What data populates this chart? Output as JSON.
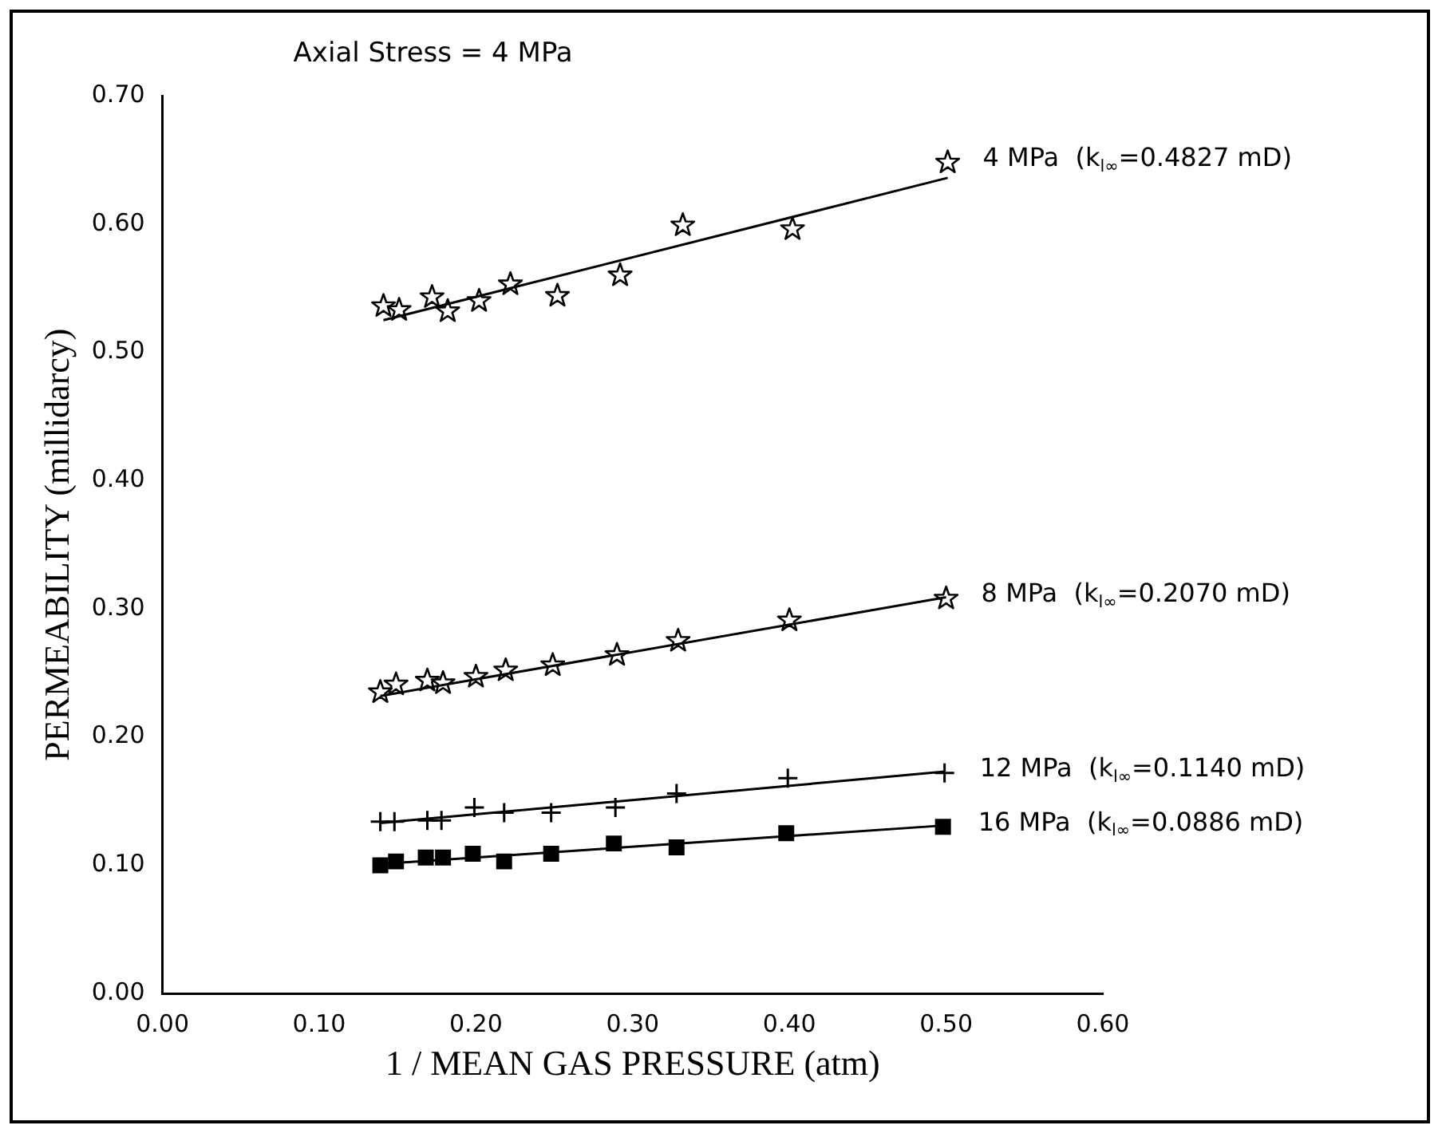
{
  "chart_data": {
    "type": "scatter",
    "title": "Axial Stress = 4 MPa",
    "xlabel": "1 / MEAN GAS PRESSURE (atm)",
    "ylabel": "PERMEABILITY (millidarcy)",
    "xlim": [
      0,
      0.6
    ],
    "xticks": [
      {
        "value": 0,
        "label": "0.00"
      },
      {
        "value": 0.1,
        "label": "0.10"
      },
      {
        "value": 0.2,
        "label": "0.20"
      },
      {
        "value": 0.3,
        "label": "0.30"
      },
      {
        "value": 0.4,
        "label": "0.40"
      },
      {
        "value": 0.5,
        "label": "0.50"
      },
      {
        "value": 0.6,
        "label": "0.60"
      }
    ],
    "ylim": [
      0,
      0.7
    ],
    "yticks": [
      {
        "value": 0,
        "label": "0.00"
      },
      {
        "value": 0.1,
        "label": "0.10"
      },
      {
        "value": 0.2,
        "label": "0.20"
      },
      {
        "value": 0.3,
        "label": "0.30"
      },
      {
        "value": 0.4,
        "label": "0.40"
      },
      {
        "value": 0.5,
        "label": "0.50"
      },
      {
        "value": 0.6,
        "label": "0.60"
      },
      {
        "value": 0.7,
        "label": "0.70"
      }
    ],
    "grid": false,
    "legend": false,
    "series": [
      {
        "name": "4 MPa  (k$_{l∞}$=0.4827 mD)",
        "color": "#000000",
        "marker": "star",
        "x": [
          0.141,
          0.151,
          0.172,
          0.182,
          0.202,
          0.222,
          0.252,
          0.292,
          0.332,
          0.402,
          0.501
        ],
        "values": [
          0.536,
          0.533,
          0.543,
          0.532,
          0.54,
          0.553,
          0.544,
          0.56,
          0.599,
          0.596,
          0.648
        ]
      },
      {
        "name": "8 MPa  (k$_{l∞}$=0.2070 mD)",
        "color": "#000000",
        "marker": "star",
        "x": [
          0.139,
          0.149,
          0.169,
          0.179,
          0.2,
          0.219,
          0.249,
          0.29,
          0.329,
          0.4,
          0.5
        ],
        "values": [
          0.235,
          0.241,
          0.244,
          0.242,
          0.247,
          0.252,
          0.256,
          0.264,
          0.275,
          0.291,
          0.308
        ]
      },
      {
        "name": "12 MPa  (k$_{l∞}$=0.1140 mD)",
        "color": "#000000",
        "marker": "cross",
        "x": [
          0.139,
          0.148,
          0.169,
          0.178,
          0.199,
          0.218,
          0.248,
          0.289,
          0.328,
          0.399,
          0.499
        ],
        "values": [
          0.134,
          0.134,
          0.135,
          0.135,
          0.145,
          0.141,
          0.141,
          0.145,
          0.156,
          0.168,
          0.172
        ]
      },
      {
        "name": "16 MPa  (k$_{l∞}$=0.0886 mD)",
        "color": "#000000",
        "marker": "square",
        "x": [
          0.139,
          0.149,
          0.168,
          0.179,
          0.198,
          0.218,
          0.248,
          0.288,
          0.328,
          0.398,
          0.498
        ],
        "values": [
          0.1,
          0.103,
          0.106,
          0.106,
          0.109,
          0.103,
          0.109,
          0.117,
          0.114,
          0.125,
          0.13
        ]
      },
      {
        "type": "line",
        "color": "#000000",
        "marker": "none",
        "x": [
          0.141,
          0.501
        ],
        "values": [
          0.525,
          0.636
        ]
      },
      {
        "type": "line",
        "color": "#000000",
        "marker": "none",
        "x": [
          0.139,
          0.5
        ],
        "values": [
          0.232,
          0.309
        ]
      },
      {
        "type": "line",
        "color": "#000000",
        "marker": "none",
        "x": [
          0.139,
          0.499
        ],
        "values": [
          0.133,
          0.173
        ]
      },
      {
        "type": "line",
        "color": "#000000",
        "marker": "none",
        "x": [
          0.139,
          0.498
        ],
        "values": [
          0.101,
          0.131
        ]
      }
    ]
  }
}
